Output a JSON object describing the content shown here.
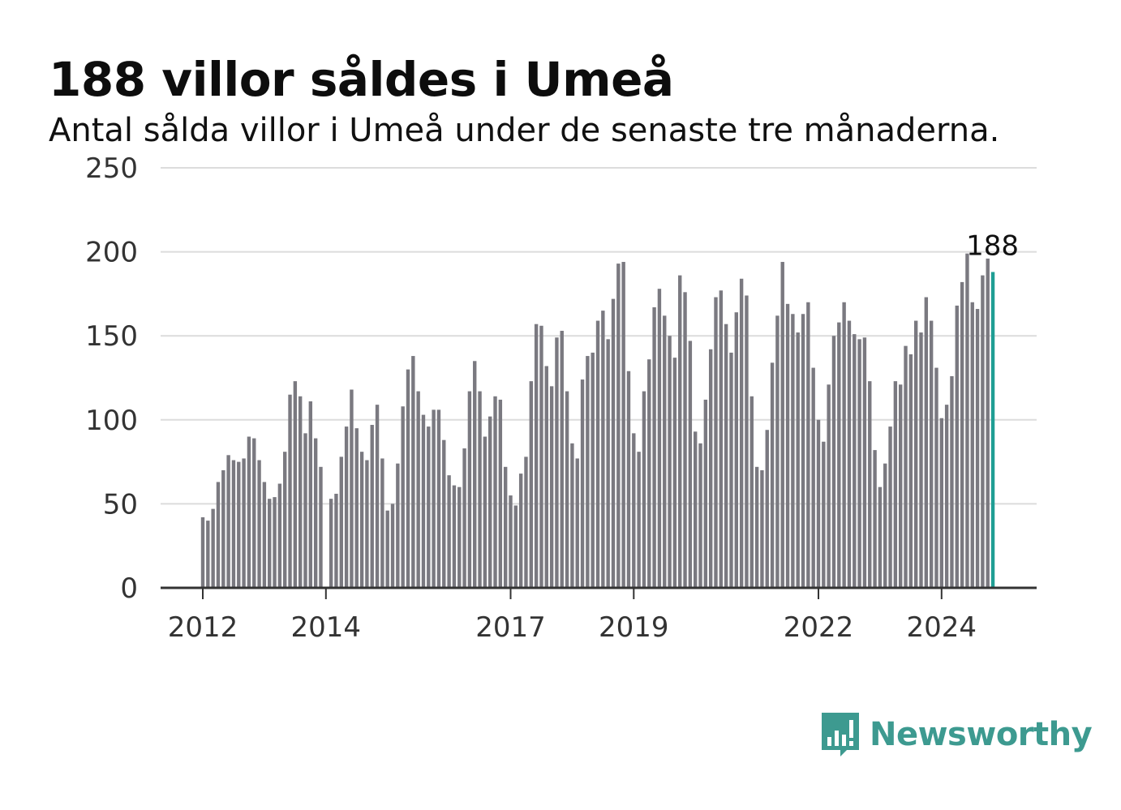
{
  "header": {
    "title": "188 villor såldes i Umeå",
    "subtitle": "Antal sålda villor i Umeå under de senaste tre månaderna."
  },
  "brand": {
    "name": "Newsworthy",
    "color": "#3d9a90",
    "icon": "bar-chart-speech-bubble-icon"
  },
  "chart_data": {
    "type": "bar",
    "title": "188 villor såldes i Umeå",
    "subtitle": "Antal sålda villor i Umeå under de senaste tre månaderna.",
    "xlabel": "",
    "ylabel": "",
    "ylim": [
      0,
      250
    ],
    "yticks": [
      "0",
      "50",
      "100",
      "150",
      "200",
      "250"
    ],
    "xticks": [
      "2012",
      "2014",
      "2017",
      "2019",
      "2022",
      "2024"
    ],
    "grid": true,
    "start_period": "2012-01",
    "bar_color": "#7a7980",
    "highlight_color": "#1f9e94",
    "highlight_label": "188",
    "values": [
      42,
      40,
      47,
      63,
      70,
      79,
      76,
      75,
      77,
      90,
      89,
      76,
      63,
      53,
      54,
      62,
      81,
      115,
      123,
      114,
      92,
      111,
      89,
      72,
      0,
      53,
      56,
      78,
      96,
      118,
      95,
      81,
      76,
      97,
      109,
      77,
      46,
      50,
      74,
      108,
      130,
      138,
      117,
      103,
      96,
      106,
      106,
      88,
      67,
      61,
      60,
      83,
      117,
      135,
      117,
      90,
      102,
      114,
      112,
      72,
      55,
      49,
      68,
      78,
      123,
      157,
      156,
      132,
      120,
      149,
      153,
      117,
      86,
      77,
      124,
      138,
      140,
      159,
      165,
      148,
      172,
      193,
      194,
      129,
      92,
      81,
      117,
      136,
      167,
      178,
      162,
      150,
      137,
      186,
      176,
      147,
      93,
      86,
      112,
      142,
      173,
      177,
      157,
      140,
      164,
      184,
      174,
      114,
      72,
      70,
      94,
      134,
      162,
      194,
      169,
      163,
      152,
      163,
      170,
      131,
      100,
      87,
      121,
      150,
      158,
      170,
      159,
      151,
      148,
      149,
      123,
      82,
      60,
      74,
      96,
      123,
      121,
      144,
      139,
      159,
      152,
      173,
      159,
      131,
      101,
      109,
      126,
      168,
      182,
      199,
      170,
      166,
      186,
      196,
      188
    ]
  }
}
